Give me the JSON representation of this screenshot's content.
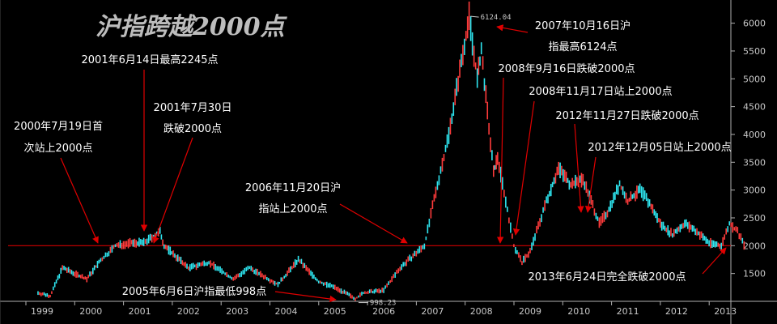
{
  "chart_data": {
    "type": "line",
    "title": "沪指跨越2000点",
    "ylim": [
      1000,
      6300
    ],
    "y_ticks": [
      "6000",
      "5500",
      "5000",
      "4500",
      "4000",
      "3500",
      "3000",
      "2500",
      "2000",
      "1500"
    ],
    "x_ticks": [
      "1999",
      "2000",
      "2001",
      "2002",
      "2003",
      "2004",
      "2005",
      "2006",
      "2007",
      "2008",
      "2009",
      "2010",
      "2011",
      "2012",
      "2013"
    ],
    "reference_line": 2000,
    "peak_label": "6124.04",
    "low_label": "998.23",
    "series": [
      {
        "x": [
          "1998-12",
          "1999-03",
          "1999-06",
          "1999-09",
          "1999-12",
          "2000-03",
          "2000-07",
          "2000-11",
          "2001-02",
          "2001-06",
          "2001-07",
          "2001-10",
          "2002-01",
          "2002-06",
          "2002-12",
          "2003-04",
          "2003-11",
          "2004-04",
          "2004-09",
          "2005-01",
          "2005-06",
          "2005-08",
          "2006-01",
          "2006-05",
          "2006-11",
          "2007-01",
          "2007-05",
          "2007-10",
          "2007-12",
          "2008-01",
          "2008-04",
          "2008-05",
          "2008-09",
          "2008-11",
          "2009-01",
          "2009-05",
          "2009-08",
          "2009-11",
          "2010-02",
          "2010-06",
          "2010-08",
          "2010-11",
          "2011-01",
          "2011-04",
          "2011-06",
          "2011-09",
          "2011-12",
          "2012-03",
          "2012-06",
          "2012-09",
          "2012-12",
          "2013-02",
          "2013-04",
          "2013-06"
        ],
        "values": [
          1150,
          1100,
          1600,
          1500,
          1400,
          1700,
          2000,
          2050,
          2050,
          2245,
          2000,
          1800,
          1600,
          1700,
          1400,
          1600,
          1300,
          1750,
          1350,
          1250,
          1050,
          1150,
          1200,
          1600,
          2000,
          2700,
          4000,
          6124,
          5000,
          5500,
          3300,
          3600,
          2000,
          1700,
          1900,
          2800,
          3400,
          3100,
          3200,
          2400,
          2600,
          3100,
          2800,
          3000,
          2800,
          2400,
          2200,
          2400,
          2250,
          2050,
          2000,
          2400,
          2250,
          1950
        ]
      }
    ]
  },
  "annotations": {
    "a1": [
      "2000年7月19日首",
      "次站上2000点"
    ],
    "a2": [
      "2001年6月14日最高2245点"
    ],
    "a3": [
      "2001年7月30日",
      "跌破2000点"
    ],
    "a4": [
      "2005年6月6日沪指最低998点"
    ],
    "a5": [
      "2006年11月20日沪",
      "指站上2000点"
    ],
    "a6": [
      "2007年10月16日沪",
      "指最高6124点"
    ],
    "a7": [
      "2008年9月16日跌破2000点"
    ],
    "a8": [
      "2008年11月17日站上2000点"
    ],
    "a9": [
      "2012年11月27日跌破2000点"
    ],
    "a10": [
      "2012年12月05日站上2000点"
    ],
    "a11": [
      "2013年6月24日完全跌破2000点"
    ]
  },
  "colors": {
    "up": "#ff3b3b",
    "down": "#2ee6f0",
    "reference": "#d00000",
    "arrow": "#e00000",
    "axis": "#b0b0b0"
  }
}
